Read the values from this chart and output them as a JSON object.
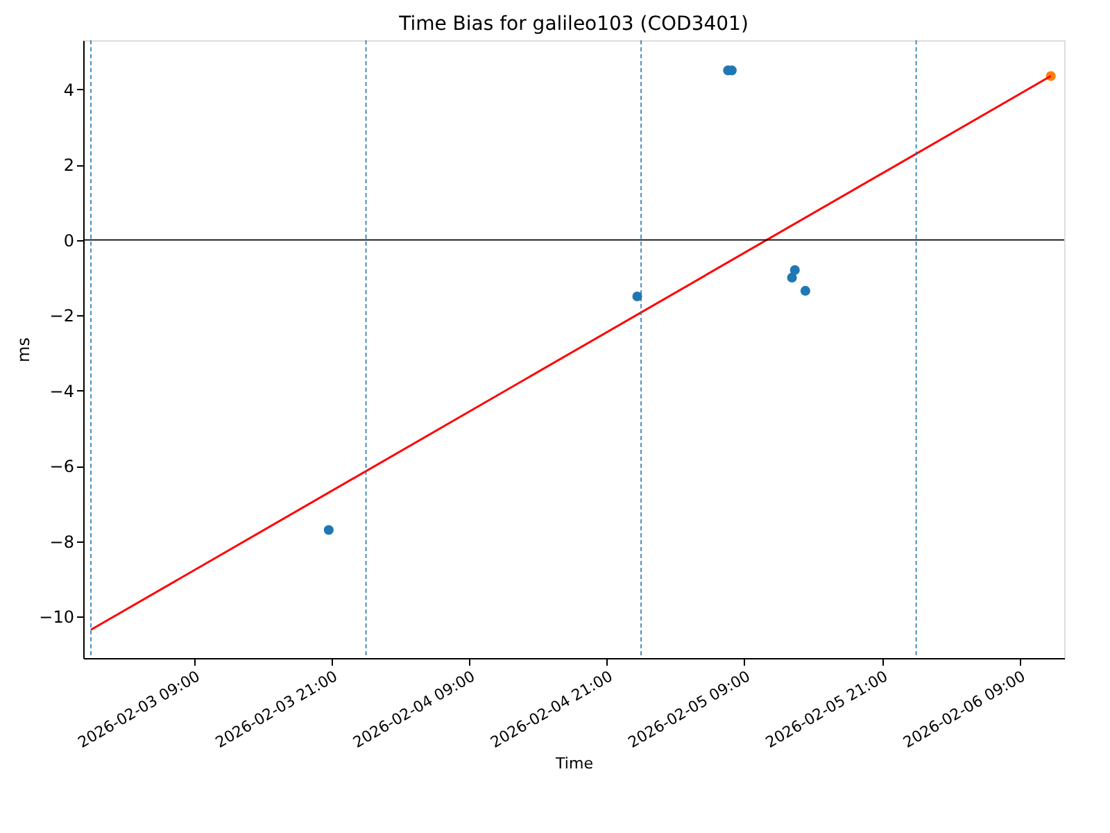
{
  "chart_data": {
    "type": "scatter",
    "title": "Time Bias for galileo103 (COD3401)",
    "xlabel": "Time",
    "ylabel": "ms",
    "xlim": [
      "2026-02-02T23:20",
      "2026-02-06T12:55"
    ],
    "ylim": [
      -11.1,
      5.3
    ],
    "xticks": [
      {
        "value": "2026-02-03T09:00",
        "label": "2026-02-03 09:00"
      },
      {
        "value": "2026-02-03T21:00",
        "label": "2026-02-03 21:00"
      },
      {
        "value": "2026-02-04T09:00",
        "label": "2026-02-04 09:00"
      },
      {
        "value": "2026-02-04T21:00",
        "label": "2026-02-04 21:00"
      },
      {
        "value": "2026-02-05T09:00",
        "label": "2026-02-05 09:00"
      },
      {
        "value": "2026-02-05T21:00",
        "label": "2026-02-05 21:00"
      },
      {
        "value": "2026-02-06T09:00",
        "label": "2026-02-06 09:00"
      }
    ],
    "yticks": [
      {
        "value": -10,
        "label": "−10"
      },
      {
        "value": -8,
        "label": "−8"
      },
      {
        "value": -6,
        "label": "−6"
      },
      {
        "value": -4,
        "label": "−4"
      },
      {
        "value": -2,
        "label": "−2"
      },
      0,
      2,
      4
    ],
    "grid": false,
    "marker": "circle",
    "series": [
      {
        "color": "#1f77b4",
        "x": [
          "2026-02-03T20:45",
          "2026-02-04T23:40",
          "2026-02-05T07:35",
          "2026-02-05T07:55",
          "2026-02-05T13:10",
          "2026-02-05T13:25",
          "2026-02-05T14:20"
        ],
        "values": [
          -7.7,
          -1.5,
          4.5,
          4.5,
          -1.0,
          -0.8,
          -1.35
        ]
      },
      {
        "color": "#ff7f0e",
        "x": [
          "2026-02-06T11:45"
        ],
        "values": [
          4.35
        ]
      },
      {
        "type": "line",
        "color": "#ff0000",
        "line_style": "solid",
        "marker": "none",
        "x": [
          "2026-02-03T00:00",
          "2026-02-06T11:45"
        ],
        "values": [
          -10.35,
          4.35
        ]
      }
    ],
    "ref_lines": [
      {
        "axis": "y",
        "value": 0,
        "color": "#000000",
        "line_style": "solid"
      },
      {
        "axis": "x",
        "value": "2026-02-03T00:00",
        "color": "#1f77b4",
        "line_style": "dashed"
      },
      {
        "axis": "x",
        "value": "2026-02-04T00:00",
        "color": "#1f77b4",
        "line_style": "dashed"
      },
      {
        "axis": "x",
        "value": "2026-02-05T00:00",
        "color": "#1f77b4",
        "line_style": "dashed"
      },
      {
        "axis": "x",
        "value": "2026-02-06T00:00",
        "color": "#1f77b4",
        "line_style": "dashed"
      }
    ]
  }
}
